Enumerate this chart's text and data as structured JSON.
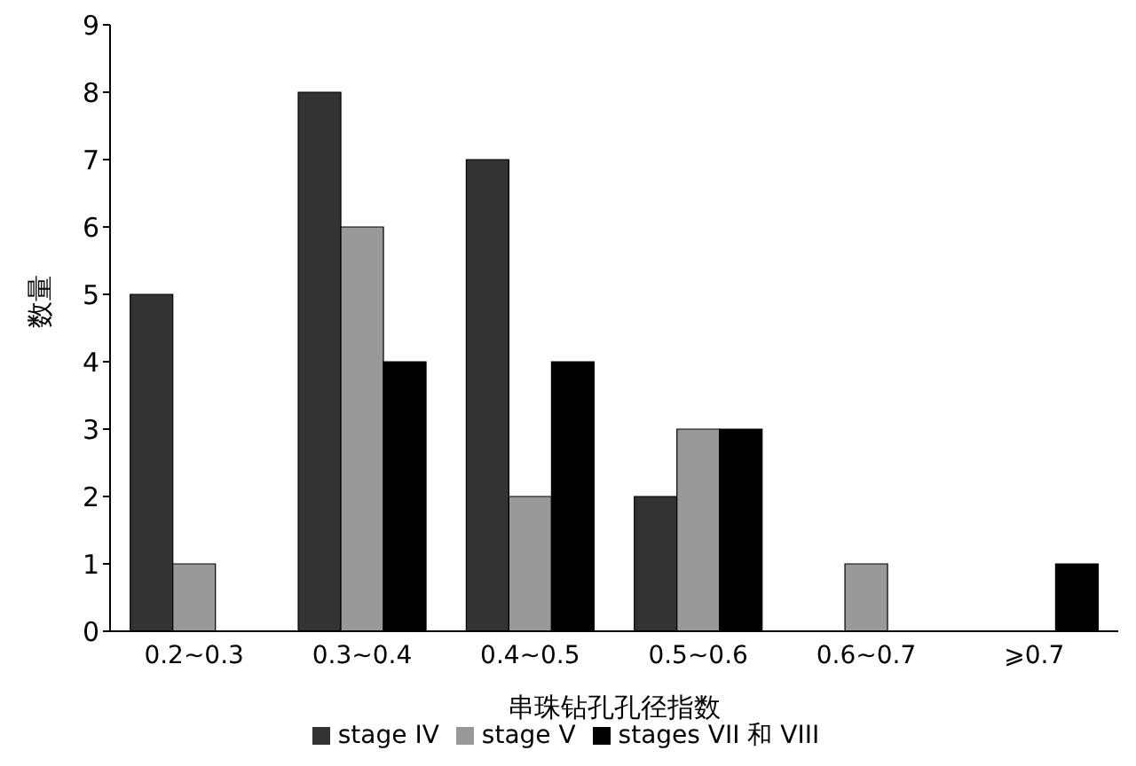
{
  "chart_data": {
    "type": "bar",
    "xlabel": "串珠钻孔孔径指数",
    "ylabel": "数量",
    "categories": [
      "0.2~0.3",
      "0.3~0.4",
      "0.4~0.5",
      "0.5~0.6",
      "0.6~0.7",
      "⩾0.7"
    ],
    "series": [
      {
        "name": "stage IV",
        "color": "#333333",
        "values": [
          5,
          8,
          7,
          2,
          0,
          0
        ]
      },
      {
        "name": "stage V",
        "color": "#999999",
        "values": [
          1,
          6,
          2,
          3,
          1,
          0
        ]
      },
      {
        "name": "stages VII 和 VIII",
        "color": "#000000",
        "values": [
          0,
          4,
          4,
          3,
          0,
          1
        ]
      }
    ],
    "ylim": [
      0,
      9
    ],
    "yticks": [
      0,
      1,
      2,
      3,
      4,
      5,
      6,
      7,
      8,
      9
    ],
    "grid": false,
    "legend": "bottom"
  }
}
